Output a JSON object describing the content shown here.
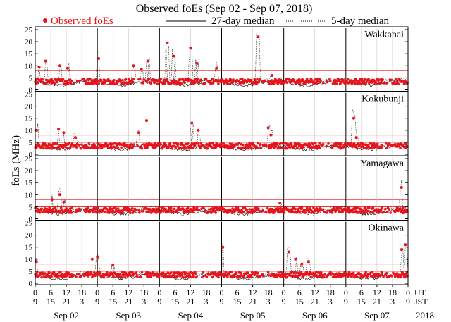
{
  "chart_data": {
    "type": "scatter",
    "title": "Observed foEs (Sep 02 - Sep 07, 2018)",
    "ylabel": "foEs (MHz)",
    "ylim": [
      0,
      25
    ],
    "yticks": [
      "0",
      "5",
      "10",
      "15",
      "20",
      "25"
    ],
    "legend": [
      {
        "key": "observed",
        "label": "Observed foEs",
        "marker": "red-dot"
      },
      {
        "key": "m27",
        "label": "27-day median",
        "line": "solid"
      },
      {
        "key": "m5",
        "label": "5-day median",
        "line": "dotted"
      }
    ],
    "x_ut_ticks": [
      "0",
      "6",
      "12",
      "18",
      "0",
      "6",
      "12",
      "18",
      "0",
      "6",
      "12",
      "18",
      "0",
      "6",
      "12",
      "18",
      "0",
      "6",
      "12",
      "18",
      "0",
      "6",
      "12",
      "18",
      "0"
    ],
    "x_jst_ticks": [
      "9",
      "15",
      "21",
      "3",
      "9",
      "15",
      "21",
      "3",
      "9",
      "15",
      "21",
      "3",
      "9",
      "15",
      "21",
      "3",
      "9",
      "15",
      "21",
      "3",
      "9",
      "15",
      "21",
      "3",
      "9"
    ],
    "ut_label": "UT",
    "jst_label": "JST",
    "days": [
      "Sep 02",
      "Sep 03",
      "Sep 04",
      "Sep 05",
      "Sep 06",
      "Sep 07"
    ],
    "year": "2018",
    "threshold_lines_mhz": [
      5,
      8
    ],
    "stations": [
      {
        "name": "Wakkanai",
        "observed_baseline": 3.5,
        "spikes": [
          {
            "h": 1.5,
            "v": 9.5
          },
          {
            "h": 4.0,
            "v": 12.0
          },
          {
            "h": 9.5,
            "v": 10.0
          },
          {
            "h": 12.5,
            "v": 9.0
          },
          {
            "h": 24.5,
            "v": 13.0
          },
          {
            "h": 38.0,
            "v": 10.0
          },
          {
            "h": 41.0,
            "v": 8.5
          },
          {
            "h": 43.5,
            "v": 12.0
          },
          {
            "h": 51.0,
            "v": 19.5
          },
          {
            "h": 53.5,
            "v": 14.0
          },
          {
            "h": 60.0,
            "v": 17.5
          },
          {
            "h": 62.5,
            "v": 11.0
          },
          {
            "h": 70.0,
            "v": 9.0
          },
          {
            "h": 86.0,
            "v": 22.0
          },
          {
            "h": 91.5,
            "v": 6.0
          }
        ]
      },
      {
        "name": "Kokubunji",
        "observed_baseline": 3.5,
        "spikes": [
          {
            "h": 0.5,
            "v": 10.0
          },
          {
            "h": 9.0,
            "v": 10.5
          },
          {
            "h": 11.0,
            "v": 9.0
          },
          {
            "h": 15.5,
            "v": 7.0
          },
          {
            "h": 40.0,
            "v": 9.0
          },
          {
            "h": 43.0,
            "v": 14.0
          },
          {
            "h": 60.5,
            "v": 13.0
          },
          {
            "h": 63.0,
            "v": 10.0
          },
          {
            "h": 90.0,
            "v": 11.0
          },
          {
            "h": 91.0,
            "v": 8.0
          },
          {
            "h": 123.0,
            "v": 15.0
          },
          {
            "h": 124.0,
            "v": 7.0
          }
        ]
      },
      {
        "name": "Yamagawa",
        "observed_baseline": 3.5,
        "spikes": [
          {
            "h": 6.5,
            "v": 8.0
          },
          {
            "h": 9.5,
            "v": 10.0
          },
          {
            "h": 11.0,
            "v": 7.0
          },
          {
            "h": 94.5,
            "v": 6.5
          },
          {
            "h": 141.5,
            "v": 13.0
          }
        ]
      },
      {
        "name": "Okinawa",
        "observed_baseline": 3.5,
        "spikes": [
          {
            "h": 0.5,
            "v": 9.0
          },
          {
            "h": 22.0,
            "v": 10.0
          },
          {
            "h": 24.0,
            "v": 11.0
          },
          {
            "h": 30.0,
            "v": 7.5
          },
          {
            "h": 72.5,
            "v": 15.0
          },
          {
            "h": 98.0,
            "v": 13.0
          },
          {
            "h": 100.5,
            "v": 10.0
          },
          {
            "h": 103.0,
            "v": 8.0
          },
          {
            "h": 105.5,
            "v": 9.0
          },
          {
            "h": 143.0,
            "v": 16.0
          },
          {
            "h": 141.5,
            "v": 14.0
          }
        ]
      }
    ]
  }
}
